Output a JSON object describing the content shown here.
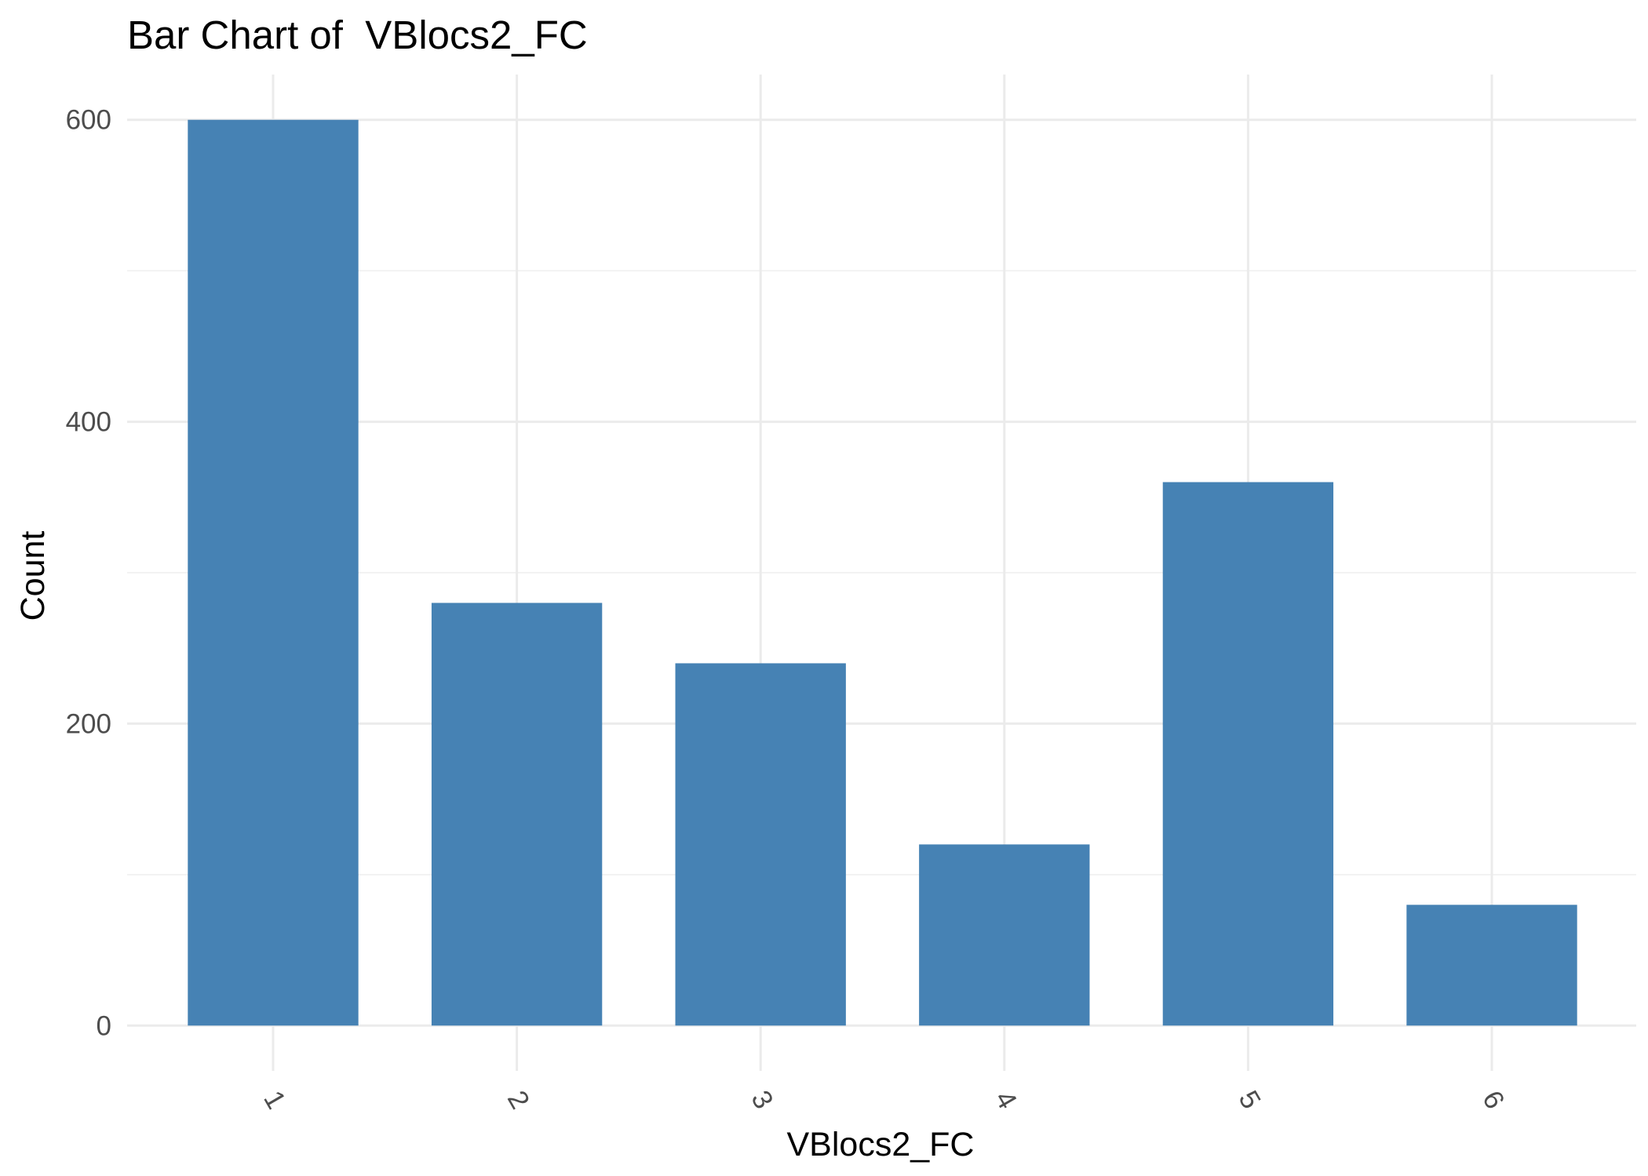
{
  "chart_data": {
    "type": "bar",
    "title": "Bar Chart of  VBlocs2_FC",
    "xlabel": "VBlocs2_FC",
    "ylabel": "Count",
    "categories": [
      "1",
      "2",
      "3",
      "4",
      "5",
      "6"
    ],
    "values": [
      600,
      280,
      240,
      120,
      360,
      80
    ],
    "ylim": [
      -30,
      630
    ],
    "y_ticks": [
      0,
      200,
      400,
      600
    ],
    "y_minor_ticks": [
      100,
      300,
      500
    ],
    "x_tick_rotation_deg": 60,
    "grid": true,
    "legend": "none",
    "colors": {
      "bar": "#4682B4",
      "grid_major": "#EBEBEB",
      "grid_minor": "#F2F2F2",
      "tick_text": "#4D4D4D",
      "text": "#000000",
      "background": "#FFFFFF"
    }
  }
}
